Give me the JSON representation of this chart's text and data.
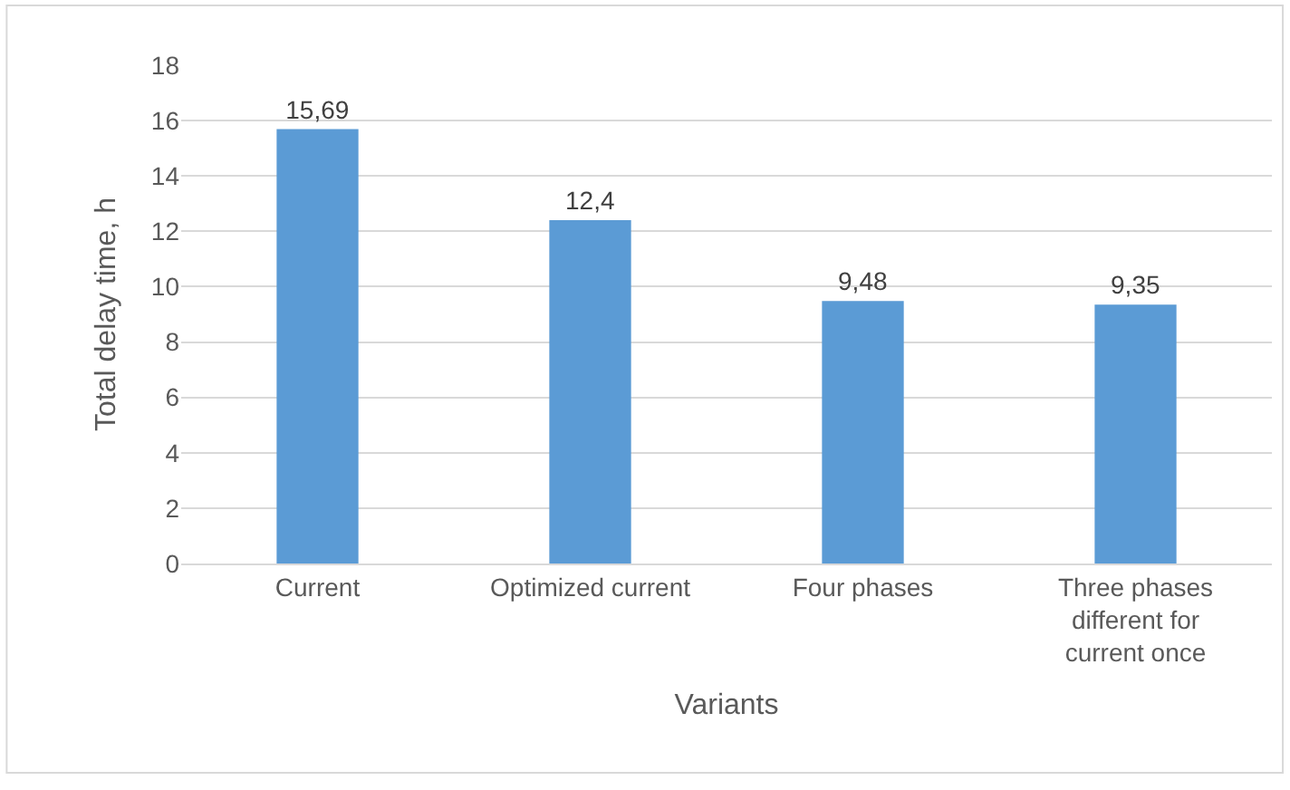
{
  "chart_data": {
    "type": "bar",
    "xlabel": "Variants",
    "ylabel": "Total delay time, h",
    "categories": [
      "Current",
      "Optimized current",
      "Four phases",
      "Three phases different for current once"
    ],
    "values": [
      15.69,
      12.4,
      9.48,
      9.35
    ],
    "value_labels": [
      "15,69",
      "12,4",
      "9,48",
      "9,35"
    ],
    "color": "#5b9bd5",
    "ylim": [
      0,
      18
    ],
    "yticks": [
      0,
      2,
      4,
      6,
      8,
      10,
      12,
      14,
      16,
      18
    ],
    "grid": "y",
    "legend": false
  }
}
